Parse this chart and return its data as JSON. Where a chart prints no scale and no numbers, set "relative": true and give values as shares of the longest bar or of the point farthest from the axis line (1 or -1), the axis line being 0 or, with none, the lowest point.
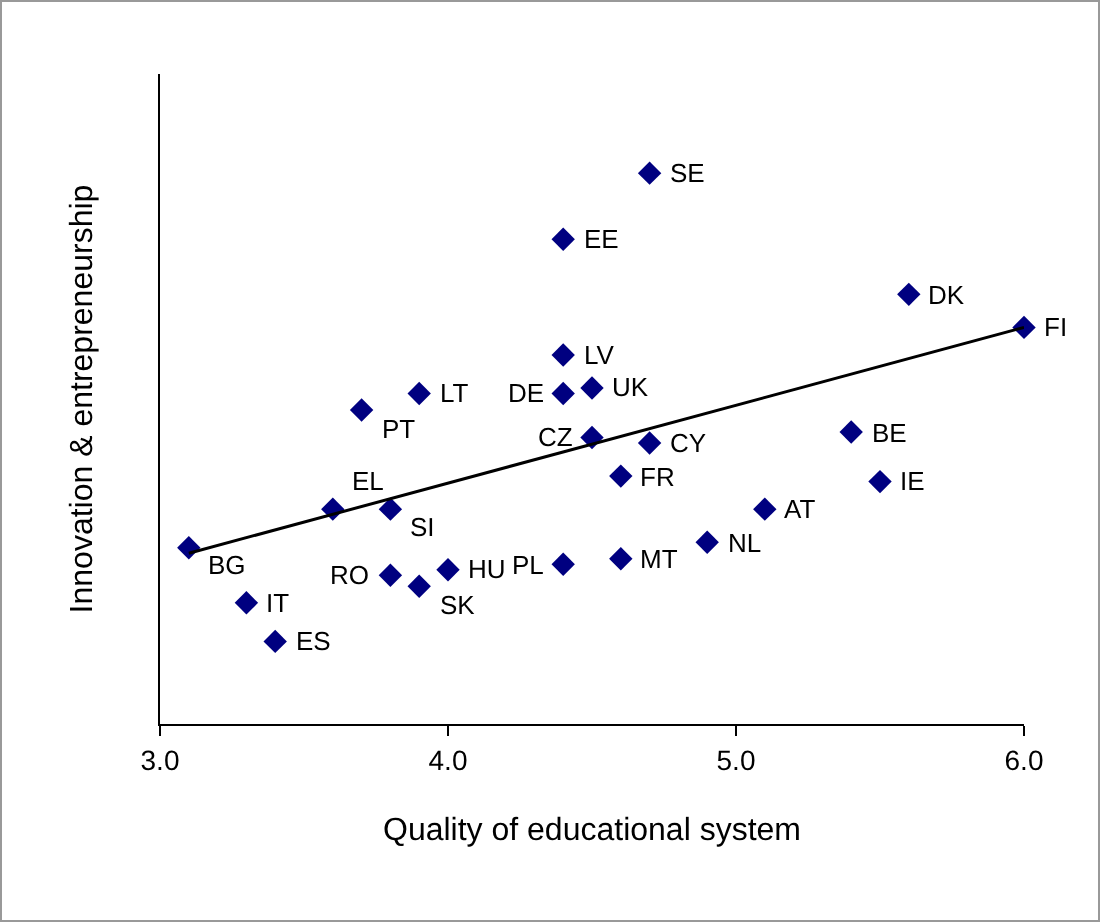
{
  "chart_data": {
    "type": "scatter",
    "relative": true,
    "xlabel": "Quality of educational system",
    "ylabel": "Innovation & entrepreneurship",
    "marker": "diamond",
    "legend": false,
    "grid": false,
    "xlim": [
      3,
      6
    ],
    "xticks": [
      {
        "value": 3,
        "label": "3.0"
      },
      {
        "value": 4,
        "label": "4.0"
      },
      {
        "value": 5,
        "label": "5.0"
      },
      {
        "value": 6,
        "label": "6.0"
      }
    ],
    "series": [
      {
        "type": "scatter",
        "color": "#000080",
        "x": [
          3.1,
          3.3,
          3.4,
          3.6,
          3.8,
          3.7,
          3.9,
          3.8,
          4.0,
          3.9,
          4.4,
          4.7,
          4.4,
          4.4,
          4.5,
          4.5,
          4.7,
          4.6,
          4.4,
          4.6,
          4.9,
          5.1,
          5.4,
          5.5,
          5.6,
          6.0
        ],
        "values": [
          0.32,
          0.22,
          0.15,
          0.39,
          0.39,
          0.57,
          0.6,
          0.27,
          0.28,
          0.25,
          0.88,
          1,
          0.67,
          0.6,
          0.61,
          0.52,
          0.51,
          0.45,
          0.29,
          0.3,
          0.33,
          0.39,
          0.53,
          0.44,
          0.78,
          0.72
        ]
      },
      {
        "type": "line",
        "marker": "none",
        "color": "#000000",
        "x": [
          3.1,
          6.0
        ],
        "values": [
          0.31,
          0.72
        ]
      }
    ],
    "annotations": [
      {
        "text": "BG",
        "x": 3.1,
        "y": 0.32
      },
      {
        "text": "IT",
        "x": 3.3,
        "y": 0.22
      },
      {
        "text": "ES",
        "x": 3.4,
        "y": 0.15
      },
      {
        "text": "EL",
        "x": 3.6,
        "y": 0.39
      },
      {
        "text": "SI",
        "x": 3.8,
        "y": 0.39
      },
      {
        "text": "PT",
        "x": 3.7,
        "y": 0.57
      },
      {
        "text": "LT",
        "x": 3.9,
        "y": 0.6
      },
      {
        "text": "RO",
        "x": 3.8,
        "y": 0.27
      },
      {
        "text": "HU",
        "x": 4.0,
        "y": 0.28
      },
      {
        "text": "SK",
        "x": 3.9,
        "y": 0.25
      },
      {
        "text": "EE",
        "x": 4.4,
        "y": 0.88
      },
      {
        "text": "SE",
        "x": 4.7,
        "y": 1
      },
      {
        "text": "LV",
        "x": 4.4,
        "y": 0.67
      },
      {
        "text": "DE",
        "x": 4.4,
        "y": 0.6
      },
      {
        "text": "UK",
        "x": 4.5,
        "y": 0.61
      },
      {
        "text": "CZ",
        "x": 4.5,
        "y": 0.52
      },
      {
        "text": "CY",
        "x": 4.7,
        "y": 0.51
      },
      {
        "text": "FR",
        "x": 4.6,
        "y": 0.45
      },
      {
        "text": "PL",
        "x": 4.4,
        "y": 0.29
      },
      {
        "text": "MT",
        "x": 4.6,
        "y": 0.3
      },
      {
        "text": "NL",
        "x": 4.9,
        "y": 0.33
      },
      {
        "text": "AT",
        "x": 5.1,
        "y": 0.39
      },
      {
        "text": "BE",
        "x": 5.4,
        "y": 0.53
      },
      {
        "text": "IE",
        "x": 5.5,
        "y": 0.44
      },
      {
        "text": "DK",
        "x": 5.6,
        "y": 0.78
      },
      {
        "text": "FI",
        "x": 6.0,
        "y": 0.72
      }
    ]
  }
}
